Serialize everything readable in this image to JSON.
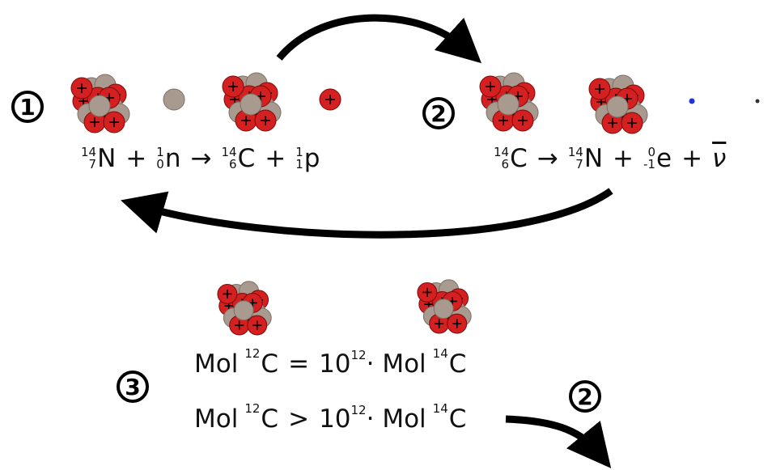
{
  "markers": [
    "1",
    "2",
    "3",
    "2"
  ],
  "reaction_1": [
    {
      "A": "14",
      "Z": "7",
      "symbol": "N"
    },
    {
      "op": "+"
    },
    {
      "A": "1",
      "Z": "0",
      "symbol": "n"
    },
    {
      "op": "→"
    },
    {
      "A": "14",
      "Z": "6",
      "symbol": "C"
    },
    {
      "op": "+"
    },
    {
      "A": "1",
      "Z": "1",
      "symbol": "p"
    }
  ],
  "reaction_2": [
    {
      "A": "14",
      "Z": "6",
      "symbol": "C"
    },
    {
      "op": "→"
    },
    {
      "A": "14",
      "Z": "7",
      "symbol": "N"
    },
    {
      "op": "+"
    },
    {
      "A": "0",
      "Z": "-1",
      "symbol": "e"
    },
    {
      "op": "+"
    },
    {
      "symbol": "ν"
    }
  ],
  "ratio_lines": [
    [
      {
        "text": "Mol"
      },
      {
        "A": "12",
        "symbol": "C"
      },
      {
        "op": "="
      },
      {
        "base": "10",
        "exp": "12"
      },
      {
        "text": "· Mol"
      },
      {
        "A": "14",
        "symbol": "C"
      }
    ],
    [
      {
        "text": "Mol"
      },
      {
        "A": "12",
        "symbol": "C"
      },
      {
        "op": ">"
      },
      {
        "base": "10",
        "exp": "12"
      },
      {
        "text": "· Mol"
      },
      {
        "A": "14",
        "symbol": "C"
      }
    ]
  ]
}
